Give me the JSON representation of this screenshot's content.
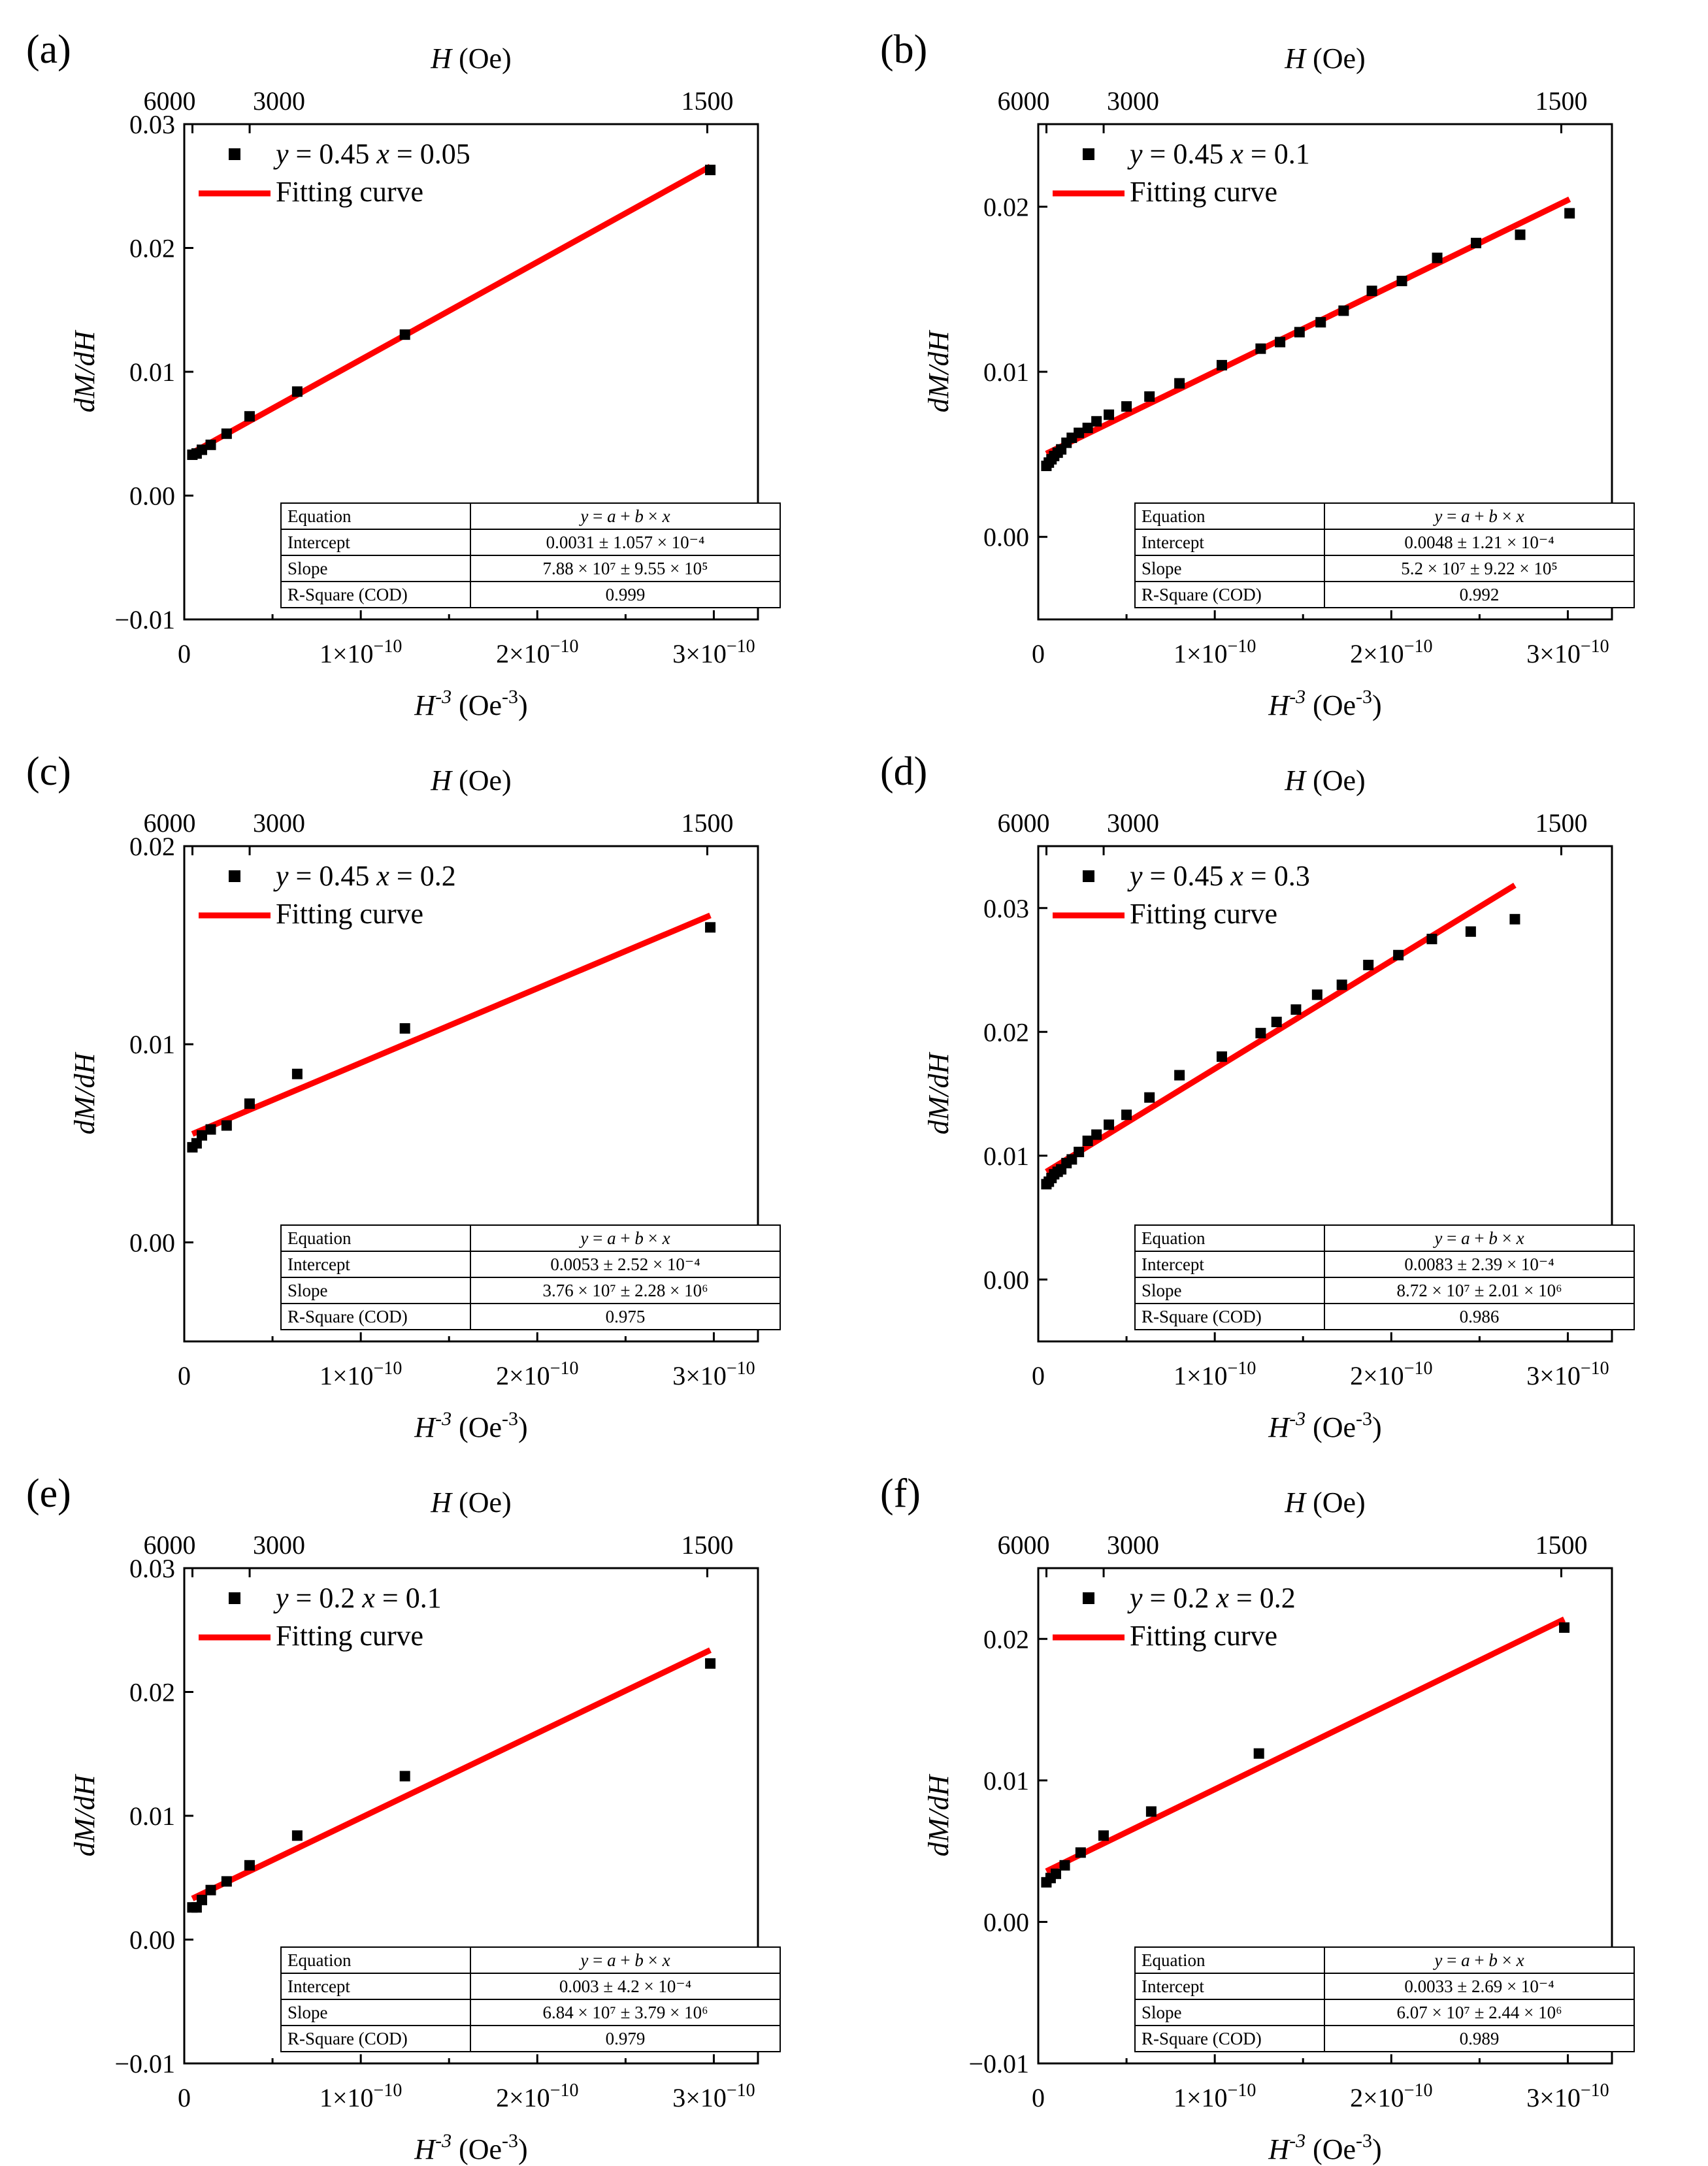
{
  "figure": {
    "top_axis_label": "H (Oe)",
    "top_ticks": [
      "6000",
      "3000",
      "1500"
    ],
    "x_tick_labels": [
      "0",
      "1×10",
      "2×10",
      "3×10"
    ],
    "x_tick_exponent": "−10"
  },
  "colors": {
    "fit": "#ff0000",
    "points": "#000000",
    "axes": "#000000"
  },
  "chart_data": [
    {
      "type": "scatter",
      "panel_label": "(a)",
      "legend_series": "y = 0.45 x = 0.05",
      "legend_fit": "Fitting curve",
      "xlabel": "H-3 (Oe-3)",
      "ylabel": "dM/dH",
      "top_xlabel": "H (Oe)",
      "top_xticks": [
        6000,
        3000,
        1500
      ],
      "xlim": [
        0,
        3.25e-10
      ],
      "ylim": [
        -0.01,
        0.03
      ],
      "yticks": [
        -0.01,
        0.0,
        0.01,
        0.02,
        0.03
      ],
      "ytick_labels": [
        "−0.01",
        "0.00",
        "0.01",
        "0.02",
        "0.03"
      ],
      "x": [
        4.6e-12,
        7e-12,
        1e-11,
        1.5e-11,
        2.4e-11,
        3.7e-11,
        6.4e-11,
        1.25e-10,
        2.98e-10
      ],
      "y": [
        0.0033,
        0.0034,
        0.0037,
        0.0041,
        0.005,
        0.0064,
        0.0084,
        0.013,
        0.0263
      ],
      "fit": {
        "intercept": 0.0031,
        "slope": 78800000.0,
        "x_range": [
          4.6e-12,
          2.98e-10
        ]
      },
      "table": {
        "equation": "y = a + b × x",
        "intercept": "0.0031 ± 1.057 × 10⁻⁴",
        "slope": "7.88 × 10⁷ ± 9.55 × 10⁵",
        "r_square": "0.999"
      }
    },
    {
      "type": "scatter",
      "panel_label": "(b)",
      "legend_series": "y = 0.45 x = 0.1",
      "legend_fit": "Fitting curve",
      "xlabel": "H-3 (Oe-3)",
      "ylabel": "dM/dH",
      "top_xlabel": "H (Oe)",
      "top_xticks": [
        6000,
        3000,
        1500
      ],
      "xlim": [
        0,
        3.25e-10
      ],
      "ylim": [
        -0.005,
        0.025
      ],
      "yticks": [
        0.0,
        0.01,
        0.02
      ],
      "ytick_labels": [
        "0.00",
        "0.01",
        "0.02"
      ],
      "x": [
        4.6e-12,
        6e-12,
        7.5e-12,
        9e-12,
        1.1e-11,
        1.3e-11,
        1.6e-11,
        1.9e-11,
        2.3e-11,
        2.8e-11,
        3.3e-11,
        4e-11,
        5e-11,
        6.3e-11,
        8e-11,
        1.04e-10,
        1.26e-10,
        1.37e-10,
        1.48e-10,
        1.6e-10,
        1.73e-10,
        1.89e-10,
        2.06e-10,
        2.26e-10,
        2.48e-10,
        2.73e-10,
        3.01e-10
      ],
      "y": [
        0.0043,
        0.0045,
        0.0047,
        0.0049,
        0.0051,
        0.0053,
        0.0057,
        0.006,
        0.0063,
        0.0066,
        0.007,
        0.0074,
        0.0079,
        0.0085,
        0.0093,
        0.0104,
        0.0114,
        0.0118,
        0.0124,
        0.013,
        0.0137,
        0.0149,
        0.0155,
        0.0169,
        0.0178,
        0.0183,
        0.0196
      ],
      "fit": {
        "intercept": 0.0048,
        "slope": 52000000.0,
        "x_range": [
          4.6e-12,
          3.01e-10
        ]
      },
      "table": {
        "equation": "y = a + b × x",
        "intercept": "0.0048 ± 1.21 × 10⁻⁴",
        "slope": "5.2 × 10⁷ ± 9.22 × 10⁵",
        "r_square": "0.992"
      }
    },
    {
      "type": "scatter",
      "panel_label": "(c)",
      "legend_series": "y = 0.45 x = 0.2",
      "legend_fit": "Fitting curve",
      "xlabel": "H-3 (Oe-3)",
      "ylabel": "dM/dH",
      "top_xlabel": "H (Oe)",
      "top_xticks": [
        6000,
        3000,
        1500
      ],
      "xlim": [
        0,
        3.25e-10
      ],
      "ylim": [
        -0.005,
        0.02
      ],
      "yticks": [
        0.0,
        0.01,
        0.02
      ],
      "ytick_labels": [
        "0.00",
        "0.01",
        "0.02"
      ],
      "x": [
        4.6e-12,
        7e-12,
        1e-11,
        1.5e-11,
        2.4e-11,
        3.7e-11,
        6.4e-11,
        1.25e-10,
        2.98e-10
      ],
      "y": [
        0.0048,
        0.005,
        0.0054,
        0.0057,
        0.0059,
        0.007,
        0.0085,
        0.0108,
        0.0159
      ],
      "fit": {
        "intercept": 0.0053,
        "slope": 37600000.0,
        "x_range": [
          4.6e-12,
          2.98e-10
        ]
      },
      "table": {
        "equation": "y = a + b × x",
        "intercept": "0.0053 ± 2.52 × 10⁻⁴",
        "slope": "3.76 × 10⁷ ± 2.28 × 10⁶",
        "r_square": "0.975"
      }
    },
    {
      "type": "scatter",
      "panel_label": "(d)",
      "legend_series": "y = 0.45 x = 0.3",
      "legend_fit": "Fitting curve",
      "xlabel": "H-3 (Oe-3)",
      "ylabel": "dM/dH",
      "top_xlabel": "H (Oe)",
      "top_xticks": [
        6000,
        3000,
        1500
      ],
      "xlim": [
        0,
        3.25e-10
      ],
      "ylim": [
        -0.005,
        0.035
      ],
      "yticks": [
        0.0,
        0.01,
        0.02,
        0.03
      ],
      "ytick_labels": [
        "0.00",
        "0.01",
        "0.02",
        "0.03"
      ],
      "x": [
        4.6e-12,
        6e-12,
        7.5e-12,
        9e-12,
        1.1e-11,
        1.3e-11,
        1.6e-11,
        1.9e-11,
        2.3e-11,
        2.8e-11,
        3.3e-11,
        4e-11,
        5e-11,
        6.3e-11,
        8e-11,
        1.04e-10,
        1.26e-10,
        1.35e-10,
        1.46e-10,
        1.58e-10,
        1.72e-10,
        1.87e-10,
        2.04e-10,
        2.23e-10,
        2.45e-10,
        2.7e-10
      ],
      "y": [
        0.0077,
        0.0079,
        0.0082,
        0.0085,
        0.0087,
        0.0089,
        0.0094,
        0.0097,
        0.0103,
        0.0112,
        0.0117,
        0.0125,
        0.0133,
        0.0147,
        0.0165,
        0.018,
        0.0199,
        0.0208,
        0.0218,
        0.023,
        0.0238,
        0.0254,
        0.0262,
        0.0275,
        0.0281,
        0.0291
      ],
      "fit": {
        "intercept": 0.0083,
        "slope": 87200000.0,
        "x_range": [
          4.6e-12,
          2.7e-10
        ]
      },
      "table": {
        "equation": "y = a + b × x",
        "intercept": "0.0083 ± 2.39 × 10⁻⁴",
        "slope": "8.72 × 10⁷ ± 2.01 × 10⁶",
        "r_square": "0.986"
      }
    },
    {
      "type": "scatter",
      "panel_label": "(e)",
      "legend_series": "y = 0.2 x = 0.1",
      "legend_fit": "Fitting curve",
      "xlabel": "H-3 (Oe-3)",
      "ylabel": "dM/dH",
      "top_xlabel": "H (Oe)",
      "top_xticks": [
        6000,
        3000,
        1500
      ],
      "xlim": [
        0,
        3.25e-10
      ],
      "ylim": [
        -0.01,
        0.03
      ],
      "yticks": [
        -0.01,
        0.0,
        0.01,
        0.02,
        0.03
      ],
      "ytick_labels": [
        "−0.01",
        "0.00",
        "0.01",
        "0.02",
        "0.03"
      ],
      "x": [
        4.6e-12,
        7e-12,
        1e-11,
        1.5e-11,
        2.4e-11,
        3.7e-11,
        6.4e-11,
        1.25e-10,
        2.98e-10
      ],
      "y": [
        0.0026,
        0.0026,
        0.0032,
        0.004,
        0.0047,
        0.006,
        0.0084,
        0.0132,
        0.0223
      ],
      "fit": {
        "intercept": 0.003,
        "slope": 68400000.0,
        "x_range": [
          4.6e-12,
          2.98e-10
        ]
      },
      "table": {
        "equation": "y = a + b × x",
        "intercept": "0.003 ± 4.2 × 10⁻⁴",
        "slope": "6.84 × 10⁷ ± 3.79 × 10⁶",
        "r_square": "0.979"
      }
    },
    {
      "type": "scatter",
      "panel_label": "(f)",
      "legend_series": "y = 0.2 x = 0.2",
      "legend_fit": "Fitting curve",
      "xlabel": "H-3 (Oe-3)",
      "ylabel": "dM/dH",
      "top_xlabel": "H (Oe)",
      "top_xticks": [
        6000,
        3000,
        1500
      ],
      "xlim": [
        0,
        3.25e-10
      ],
      "ylim": [
        -0.01,
        0.025
      ],
      "yticks": [
        -0.01,
        0.0,
        0.01,
        0.02
      ],
      "ytick_labels": [
        "−0.01",
        "0.00",
        "0.01",
        "0.02"
      ],
      "x": [
        4.6e-12,
        7e-12,
        1e-11,
        1.5e-11,
        2.4e-11,
        3.7e-11,
        6.4e-11,
        1.25e-10,
        2.98e-10
      ],
      "y": [
        0.0028,
        0.0031,
        0.0034,
        0.004,
        0.0049,
        0.0061,
        0.0078,
        0.0119,
        0.0208
      ],
      "fit": {
        "intercept": 0.0033,
        "slope": 60700000.0,
        "x_range": [
          4.6e-12,
          2.98e-10
        ]
      },
      "table": {
        "equation": "y = a + b × x",
        "intercept": "0.0033 ± 2.69 × 10⁻⁴",
        "slope": "6.07 × 10⁷ ± 2.44 × 10⁶",
        "r_square": "0.989"
      }
    }
  ]
}
